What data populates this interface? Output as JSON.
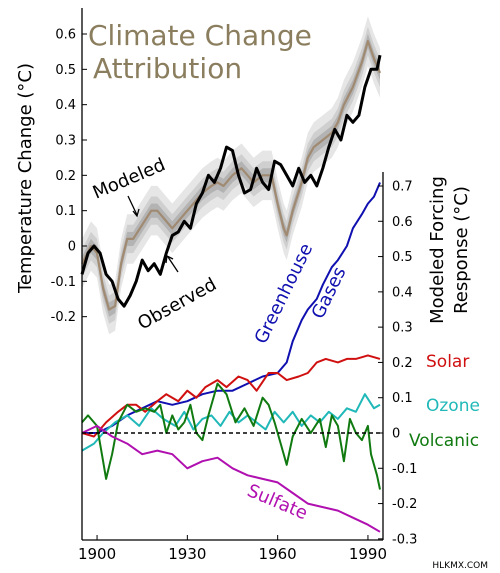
{
  "chart_data": {
    "type": "line",
    "title": "Climate Change Attribution",
    "title_lines": [
      "Climate Change",
      "Attribution"
    ],
    "x_ticks": [
      1900,
      1930,
      1960,
      1990
    ],
    "xlim": [
      1895,
      1995
    ],
    "watermark": "HLKMX.COM",
    "colors": {
      "title": "#8b7e5e",
      "modeled": "#a08a72",
      "observed": "#000000",
      "band_outer": "#e6e6e6",
      "band_mid": "#cfcfcf",
      "band_inner": "#b3b3b3",
      "greenhouse": "#1010b0",
      "solar": "#d01010",
      "ozone": "#20b8b8",
      "volcanic": "#107a10",
      "sulfate": "#b010b0"
    },
    "temperature_panel": {
      "ylabel": "Temperature Change (°C)",
      "ylim": [
        -0.25,
        0.65
      ],
      "y_ticks": [
        -0.2,
        -0.1,
        0,
        0.1,
        0.2,
        0.3,
        0.4,
        0.5,
        0.6
      ],
      "annotations": {
        "modeled": "Modeled",
        "observed": "Observed"
      },
      "modeled_band_halfwidths": [
        0.02,
        0.04,
        0.07
      ],
      "series": [
        {
          "name": "Modeled",
          "x": [
            1895,
            1898,
            1900,
            1902,
            1904,
            1906,
            1908,
            1910,
            1912,
            1915,
            1918,
            1920,
            1922,
            1925,
            1928,
            1930,
            1932,
            1935,
            1938,
            1940,
            1942,
            1945,
            1948,
            1950,
            1952,
            1955,
            1958,
            1960,
            1962,
            1963,
            1965,
            1968,
            1970,
            1972,
            1975,
            1978,
            1980,
            1982,
            1985,
            1988,
            1990,
            1992,
            1994
          ],
          "y": [
            -0.05,
            0.0,
            -0.02,
            -0.12,
            -0.18,
            -0.17,
            -0.05,
            0.02,
            0.02,
            0.06,
            0.1,
            0.1,
            0.08,
            0.05,
            0.08,
            0.1,
            0.12,
            0.15,
            0.17,
            0.18,
            0.17,
            0.2,
            0.22,
            0.2,
            0.18,
            0.2,
            0.2,
            0.12,
            0.05,
            0.03,
            0.1,
            0.18,
            0.25,
            0.28,
            0.3,
            0.32,
            0.35,
            0.4,
            0.45,
            0.52,
            0.58,
            0.53,
            0.49
          ]
        },
        {
          "name": "Observed",
          "x": [
            1895,
            1897,
            1899,
            1901,
            1903,
            1905,
            1907,
            1909,
            1911,
            1913,
            1915,
            1917,
            1919,
            1921,
            1923,
            1925,
            1927,
            1929,
            1931,
            1933,
            1935,
            1937,
            1939,
            1941,
            1943,
            1945,
            1947,
            1949,
            1951,
            1953,
            1955,
            1957,
            1959,
            1961,
            1963,
            1965,
            1967,
            1969,
            1971,
            1973,
            1975,
            1977,
            1979,
            1981,
            1983,
            1985,
            1987,
            1989,
            1991,
            1993,
            1994
          ],
          "y": [
            -0.08,
            -0.02,
            0.0,
            -0.02,
            -0.08,
            -0.1,
            -0.15,
            -0.17,
            -0.14,
            -0.1,
            -0.04,
            -0.07,
            -0.05,
            -0.08,
            -0.02,
            0.03,
            0.04,
            0.07,
            0.05,
            0.12,
            0.15,
            0.2,
            0.18,
            0.22,
            0.28,
            0.27,
            0.2,
            0.15,
            0.16,
            0.22,
            0.18,
            0.16,
            0.24,
            0.23,
            0.2,
            0.17,
            0.22,
            0.18,
            0.2,
            0.17,
            0.22,
            0.28,
            0.33,
            0.3,
            0.37,
            0.35,
            0.37,
            0.45,
            0.5,
            0.5,
            0.54
          ]
        }
      ]
    },
    "forcing_panel": {
      "ylabel_lines": [
        "Modeled Forcing",
        "Response (°C)"
      ],
      "ylim": [
        -0.3,
        0.75
      ],
      "y_ticks": [
        -0.3,
        -0.2,
        -0.1,
        0,
        0.1,
        0.2,
        0.3,
        0.4,
        0.5,
        0.6,
        0.7
      ],
      "zero_line": "dashed",
      "series": [
        {
          "name": "Greenhouse Gases",
          "label_lines": [
            "Greenhouse",
            "Gases"
          ],
          "x": [
            1895,
            1900,
            1905,
            1910,
            1915,
            1920,
            1925,
            1930,
            1935,
            1940,
            1945,
            1950,
            1955,
            1960,
            1963,
            1965,
            1968,
            1970,
            1973,
            1975,
            1978,
            1980,
            1983,
            1985,
            1988,
            1990,
            1992,
            1994
          ],
          "y": [
            0.0,
            0.0,
            0.02,
            0.05,
            0.07,
            0.09,
            0.08,
            0.09,
            0.11,
            0.12,
            0.12,
            0.14,
            0.16,
            0.17,
            0.2,
            0.26,
            0.32,
            0.35,
            0.38,
            0.42,
            0.47,
            0.49,
            0.53,
            0.58,
            0.62,
            0.65,
            0.67,
            0.71
          ]
        },
        {
          "name": "Solar",
          "x": [
            1895,
            1899,
            1903,
            1907,
            1910,
            1913,
            1916,
            1920,
            1923,
            1927,
            1930,
            1933,
            1936,
            1940,
            1943,
            1947,
            1950,
            1953,
            1957,
            1960,
            1963,
            1967,
            1970,
            1973,
            1976,
            1980,
            1983,
            1986,
            1990,
            1994
          ],
          "y": [
            0.0,
            -0.01,
            0.03,
            0.06,
            0.08,
            0.08,
            0.06,
            0.09,
            0.11,
            0.09,
            0.12,
            0.1,
            0.13,
            0.15,
            0.13,
            0.16,
            0.15,
            0.12,
            0.17,
            0.17,
            0.15,
            0.16,
            0.17,
            0.2,
            0.21,
            0.2,
            0.21,
            0.21,
            0.22,
            0.21
          ]
        },
        {
          "name": "Ozone",
          "x": [
            1895,
            1899,
            1902,
            1906,
            1910,
            1914,
            1918,
            1922,
            1926,
            1929,
            1932,
            1935,
            1938,
            1941,
            1944,
            1947,
            1950,
            1953,
            1956,
            1959,
            1962,
            1965,
            1968,
            1971,
            1974,
            1977,
            1980,
            1983,
            1986,
            1989,
            1992,
            1994
          ],
          "y": [
            -0.05,
            -0.03,
            0.0,
            0.03,
            0.05,
            0.02,
            0.07,
            0.04,
            0.02,
            0.06,
            0.01,
            0.04,
            0.05,
            0.02,
            0.06,
            0.03,
            0.05,
            0.03,
            0.01,
            0.06,
            0.03,
            0.06,
            0.02,
            0.05,
            0.03,
            0.06,
            0.04,
            0.07,
            0.06,
            0.11,
            0.07,
            0.08
          ]
        },
        {
          "name": "Volcanic",
          "x": [
            1895,
            1897,
            1900,
            1902,
            1903,
            1905,
            1907,
            1910,
            1913,
            1916,
            1919,
            1921,
            1923,
            1925,
            1927,
            1929,
            1931,
            1933,
            1935,
            1937,
            1940,
            1943,
            1946,
            1949,
            1952,
            1955,
            1957,
            1959,
            1961,
            1963,
            1965,
            1968,
            1971,
            1974,
            1976,
            1978,
            1980,
            1982,
            1984,
            1986,
            1988,
            1990,
            1991,
            1993,
            1994
          ],
          "y": [
            0.03,
            0.05,
            0.02,
            -0.08,
            -0.13,
            -0.06,
            0.03,
            0.08,
            0.06,
            0.07,
            0.06,
            0.08,
            0.0,
            0.05,
            0.01,
            0.03,
            0.08,
            0.0,
            -0.02,
            0.05,
            0.14,
            0.11,
            0.03,
            0.07,
            0.02,
            0.1,
            0.08,
            0.03,
            -0.03,
            -0.09,
            -0.01,
            0.04,
            0.0,
            0.04,
            -0.04,
            0.05,
            0.02,
            -0.08,
            0.04,
            0.0,
            -0.02,
            0.02,
            -0.06,
            -0.12,
            -0.16
          ]
        },
        {
          "name": "Sulfate",
          "x": [
            1895,
            1900,
            1905,
            1910,
            1915,
            1920,
            1925,
            1930,
            1935,
            1940,
            1945,
            1950,
            1955,
            1960,
            1965,
            1970,
            1975,
            1980,
            1985,
            1990,
            1994
          ],
          "y": [
            0.0,
            0.02,
            -0.01,
            -0.03,
            -0.06,
            -0.05,
            -0.06,
            -0.1,
            -0.08,
            -0.07,
            -0.1,
            -0.12,
            -0.13,
            -0.14,
            -0.17,
            -0.2,
            -0.21,
            -0.22,
            -0.24,
            -0.26,
            -0.28
          ]
        }
      ]
    }
  }
}
